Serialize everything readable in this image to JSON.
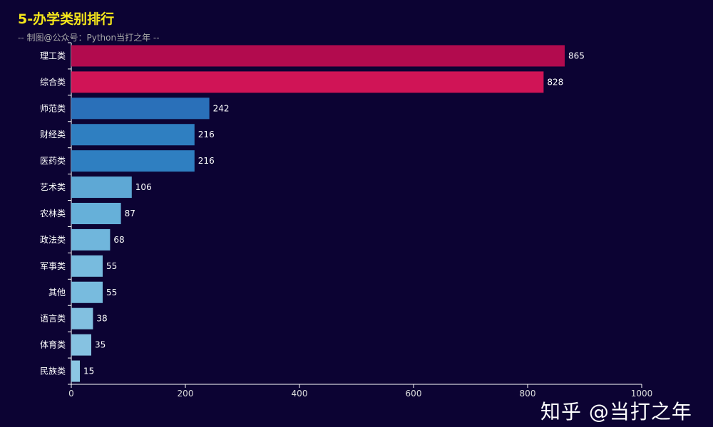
{
  "chart_data": {
    "type": "bar",
    "orientation": "horizontal",
    "title": "5-办学类别排行",
    "subtitle": "-- 制图@公众号：Python当打之年 --",
    "categories": [
      "理工类",
      "综合类",
      "师范类",
      "财经类",
      "医药类",
      "艺术类",
      "农林类",
      "政法类",
      "军事类",
      "其他",
      "语言类",
      "体育类",
      "民族类"
    ],
    "values": [
      865,
      828,
      242,
      216,
      216,
      106,
      87,
      68,
      55,
      55,
      38,
      35,
      15
    ],
    "colors": [
      "#b20b4e",
      "#d01456",
      "#2a70b9",
      "#2f7fc1",
      "#2f7fc1",
      "#5ea8d5",
      "#66b0d9",
      "#70b6dc",
      "#78bbde",
      "#78bbde",
      "#82c0e0",
      "#86c2e1",
      "#8cc6e3"
    ],
    "xlim": [
      0,
      1000
    ],
    "xticks": [
      0,
      200,
      400,
      600,
      800,
      1000
    ],
    "grid": false,
    "data_labels": true
  },
  "watermark": "知乎 @当打之年"
}
